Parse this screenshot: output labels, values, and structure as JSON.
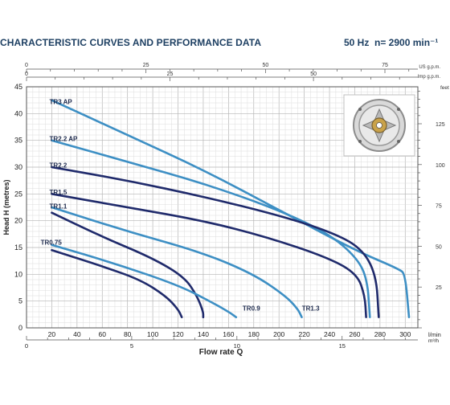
{
  "header": {
    "title": "CHARACTERISTIC CURVES AND PERFORMANCE DATA",
    "frequency": "50 Hz",
    "speed": "n= 2900 min⁻¹"
  },
  "chart_data": {
    "type": "line",
    "title": "CHARACTERISTIC CURVES AND PERFORMANCE DATA",
    "xlabel": "Flow rate  Q",
    "ylabel": "Head  H  (metres)",
    "xlim": [
      0,
      310
    ],
    "ylim": [
      0,
      45
    ],
    "grid": true,
    "axes": {
      "x_primary": {
        "unit": "l/min",
        "ticks": [
          "20",
          "40",
          "60",
          "80",
          "100",
          "120",
          "140",
          "160",
          "180",
          "200",
          "220",
          "240",
          "260",
          "280",
          "300"
        ],
        "tick_values": [
          20,
          40,
          60,
          80,
          100,
          120,
          140,
          160,
          180,
          200,
          220,
          240,
          260,
          280,
          300
        ]
      },
      "x_m3h": {
        "unit": "m³/h",
        "ticks": [
          "0",
          "5",
          "10",
          "15"
        ],
        "tick_values": [
          0,
          5,
          10,
          15
        ]
      },
      "x_usgpm": {
        "unit": "US g.p.m.",
        "ticks": [
          "0",
          "25",
          "50",
          "75"
        ],
        "tick_values": [
          0,
          25,
          50,
          75
        ]
      },
      "x_impgpm": {
        "unit": "Imp g.p.m.",
        "ticks": [
          "0",
          "25",
          "50"
        ],
        "tick_values": [
          0,
          25,
          50
        ]
      },
      "y_primary": {
        "ticks": [
          "0",
          "5",
          "10",
          "15",
          "20",
          "25",
          "30",
          "35",
          "40",
          "45"
        ],
        "tick_values": [
          0,
          5,
          10,
          15,
          20,
          25,
          30,
          35,
          40,
          45
        ]
      },
      "y_feet": {
        "unit": "feet",
        "ticks": [
          "25",
          "50",
          "75",
          "100",
          "125"
        ],
        "tick_values": [
          25,
          50,
          75,
          100,
          125
        ]
      }
    },
    "series": [
      {
        "name": "TR3 AP",
        "color": "#3d8fc4",
        "points": [
          [
            20,
            42.5
          ],
          [
            80,
            36
          ],
          [
            140,
            29.5
          ],
          [
            200,
            22
          ],
          [
            260,
            14.5
          ],
          [
            295,
            11
          ],
          [
            300,
            10
          ],
          [
            303,
            2
          ]
        ]
      },
      {
        "name": "TR2.2 AP",
        "color": "#3d8fc4",
        "points": [
          [
            20,
            35
          ],
          [
            80,
            31
          ],
          [
            140,
            27
          ],
          [
            200,
            22
          ],
          [
            240,
            17.5
          ],
          [
            262,
            13
          ],
          [
            270,
            9
          ],
          [
            272,
            2
          ]
        ]
      },
      {
        "name": "TR2.2",
        "color": "#1f2a6b",
        "points": [
          [
            20,
            30
          ],
          [
            80,
            27.5
          ],
          [
            140,
            24.5
          ],
          [
            200,
            21
          ],
          [
            240,
            18
          ],
          [
            265,
            15
          ],
          [
            277,
            10
          ],
          [
            279,
            2
          ]
        ]
      },
      {
        "name": "TR1.5",
        "color": "#1f2a6b",
        "points": [
          [
            20,
            25
          ],
          [
            80,
            22.5
          ],
          [
            140,
            20
          ],
          [
            190,
            17
          ],
          [
            240,
            13
          ],
          [
            262,
            10
          ],
          [
            268,
            6
          ],
          [
            269,
            2
          ]
        ]
      },
      {
        "name": "TR1.1",
        "color": "#3d8fc4",
        "points": [
          [
            20,
            22.5
          ],
          [
            80,
            18
          ],
          [
            140,
            14
          ],
          [
            180,
            10
          ],
          [
            205,
            6
          ],
          [
            215,
            3.5
          ],
          [
            218,
            2
          ]
        ]
      },
      {
        "name": "TR1.1 curve",
        "color": "#1f2a6b",
        "points": [
          [
            20,
            21.5
          ],
          [
            60,
            17
          ],
          [
            100,
            13
          ],
          [
            125,
            9.5
          ],
          [
            135,
            6
          ],
          [
            140,
            3
          ],
          [
            140,
            2
          ]
        ]
      },
      {
        "name": "TR0.75",
        "color": "#3d8fc4",
        "points": [
          [
            20,
            15.5
          ],
          [
            70,
            12
          ],
          [
            120,
            8
          ],
          [
            145,
            5
          ],
          [
            160,
            3
          ],
          [
            166,
            2
          ]
        ]
      },
      {
        "name": "TR0.75 curve",
        "color": "#1f2a6b",
        "points": [
          [
            20,
            14.5
          ],
          [
            60,
            11.5
          ],
          [
            90,
            9
          ],
          [
            110,
            6
          ],
          [
            120,
            3.5
          ],
          [
            123,
            2
          ]
        ]
      }
    ],
    "annotations": [
      "TR3 AP",
      "TR2.2 AP",
      "TR2.2",
      "TR1.5",
      "TR1.1",
      "TR0.75",
      "TR0.9",
      "TR1.3"
    ]
  }
}
